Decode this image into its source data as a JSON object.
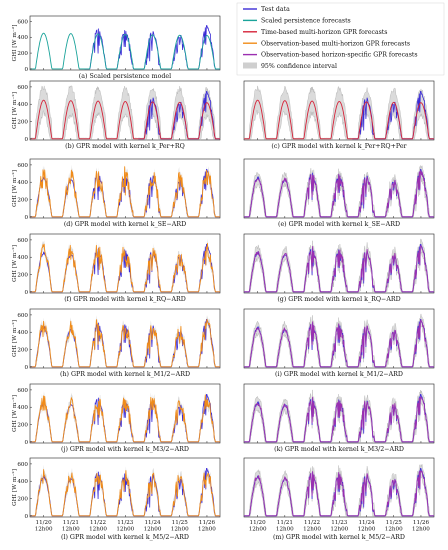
{
  "legend": [
    {
      "label": "Test data",
      "color": "#3a2bd6",
      "kind": "line"
    },
    {
      "label": "Scaled persistence forecasts",
      "color": "#1aa39a",
      "kind": "line"
    },
    {
      "label": "Time-based multi-horizon GPR forecasts",
      "color": "#d6243a",
      "kind": "line"
    },
    {
      "label": "Observation-based multi-horizon GPR forecasts",
      "color": "#f08c1a",
      "kind": "line"
    },
    {
      "label": "Observation-based horizon-specific GPR forecasts",
      "color": "#9b2fb0",
      "kind": "line"
    },
    {
      "label": "95% confidence interval",
      "color": "#cfcfcf",
      "kind": "patch"
    }
  ],
  "y_axis": {
    "label": "GHI [W m⁻²]",
    "ticks": [
      "0",
      "200",
      "400",
      "600"
    ]
  },
  "x_axis": {
    "ticks": [
      "11/20\n12h00",
      "11/21\n12h00",
      "11/22\n12h00",
      "11/23\n12h00",
      "11/24\n12h00",
      "11/25\n12h00",
      "11/26\n12h00"
    ]
  },
  "captions": {
    "a": "(a) Scaled persistence model",
    "b": "(b) GPR model with kernel k_Per+RQ",
    "c": "(c) GPR model with kernel k_Per+RQ+Per",
    "d": "(d) GPR model with kernel k_SE−ARD",
    "e": "(e) GPR model with kernel k_SE−ARD",
    "f": "(f) GPR model with kernel k_RQ−ARD",
    "g": "(g) GPR model with kernel k_RQ−ARD",
    "h": "(h) GPR model with kernel k_M1/2−ARD",
    "i": "(i) GPR model with kernel k_M1/2−ARD",
    "j": "(j) GPR model with kernel k_M3/2−ARD",
    "k": "(k) GPR model with kernel k_M3/2−ARD",
    "l": "(l) GPR model with kernel k_M5/2−ARD",
    "m": "(m) GPR model with kernel k_M5/2−ARD"
  },
  "chart_data": {
    "type": "line",
    "xlabel": "",
    "ylabel": "GHI [W m⁻²]",
    "ylim": [
      0,
      600
    ],
    "categories": [
      "11/20 12h00",
      "11/21 12h00",
      "11/22 12h00",
      "11/23 12h00",
      "11/24 12h00",
      "11/25 12h00",
      "11/26 12h00"
    ],
    "daily_peak_test": [
      470,
      440,
      520,
      500,
      480,
      430,
      560
    ],
    "daily_peak_clear_sky": [
      460,
      455,
      450,
      445,
      440,
      435,
      430
    ],
    "series": [
      {
        "name": "Test data",
        "values": [
          470,
          440,
          520,
          500,
          480,
          430,
          560
        ]
      },
      {
        "name": "Scaled persistence forecasts",
        "values": [
          460,
          455,
          450,
          445,
          440,
          435,
          430
        ]
      },
      {
        "name": "Time-based multi-horizon GPR forecasts",
        "values": [
          450,
          450,
          450,
          450,
          450,
          450,
          450
        ]
      },
      {
        "name": "Observation-based multi-horizon GPR forecasts",
        "values": [
          460,
          450,
          470,
          480,
          460,
          420,
          480
        ]
      },
      {
        "name": "Observation-based horizon-specific GPR forecasts",
        "values": [
          460,
          445,
          500,
          490,
          470,
          425,
          540
        ]
      }
    ]
  }
}
